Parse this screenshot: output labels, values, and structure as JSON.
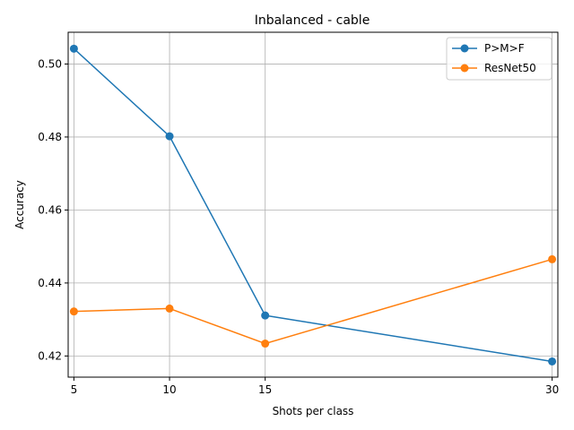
{
  "chart_data": {
    "type": "line",
    "title": "Inbalanced - cable",
    "xlabel": "Shots per class",
    "ylabel": "Accuracy",
    "x": [
      5,
      10,
      15,
      30
    ],
    "xlim": [
      4.7,
      30.3
    ],
    "ylim": [
      0.4142,
      0.5087
    ],
    "xticks": [
      5,
      10,
      15,
      30
    ],
    "xtick_labels": [
      "5",
      "10",
      "15",
      "30"
    ],
    "yticks": [
      0.42,
      0.44,
      0.46,
      0.48,
      0.5
    ],
    "ytick_labels": [
      "0.42",
      "0.44",
      "0.46",
      "0.48",
      "0.50"
    ],
    "grid": true,
    "legend_position": "top-right",
    "series": [
      {
        "name": "P>M>F",
        "color": "#1f77b4",
        "values": [
          0.5042,
          0.4802,
          0.4311,
          0.4185
        ]
      },
      {
        "name": "ResNet50",
        "color": "#ff7f0e",
        "values": [
          0.4322,
          0.433,
          0.4234,
          0.4465
        ]
      }
    ]
  }
}
